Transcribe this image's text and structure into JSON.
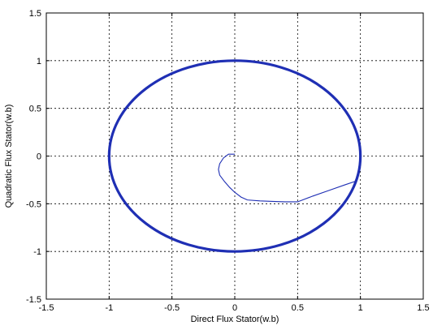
{
  "chart_data": {
    "type": "line",
    "title": "",
    "xlabel": "Direct Flux Stator(w.b)",
    "ylabel": "Quadratic Flux Stator(w.b)",
    "xlim": [
      -1.5,
      1.5
    ],
    "ylim": [
      -1.5,
      1.5
    ],
    "xticks": [
      -1.5,
      -1,
      -0.5,
      0,
      0.5,
      1,
      1.5
    ],
    "yticks": [
      -1.5,
      -1,
      -0.5,
      0,
      0.5,
      1,
      1.5
    ],
    "xtick_labels": [
      "-1.5",
      "-1",
      "-0.5",
      "0",
      "0.5",
      "1",
      "1.5"
    ],
    "ytick_labels": [
      "-1.5",
      "-1",
      "-0.5",
      "0",
      "0.5",
      "1",
      "1.5"
    ],
    "grid": true,
    "line_color": "#1f2fb4",
    "series": [
      {
        "kind": "circle",
        "center": [
          0,
          0
        ],
        "radius": 1.0
      },
      {
        "kind": "trajectory",
        "x": [
          0.0,
          -0.05,
          -0.09,
          -0.12,
          -0.13,
          -0.12,
          -0.08,
          -0.04,
          0.0,
          0.05,
          0.1,
          0.2,
          0.3,
          0.4,
          0.5,
          0.62,
          0.75,
          0.88,
          0.97
        ],
        "y": [
          0.02,
          0.02,
          -0.02,
          -0.08,
          -0.14,
          -0.2,
          -0.27,
          -0.33,
          -0.38,
          -0.43,
          -0.46,
          -0.47,
          -0.475,
          -0.48,
          -0.48,
          -0.42,
          -0.36,
          -0.3,
          -0.26
        ]
      }
    ]
  }
}
